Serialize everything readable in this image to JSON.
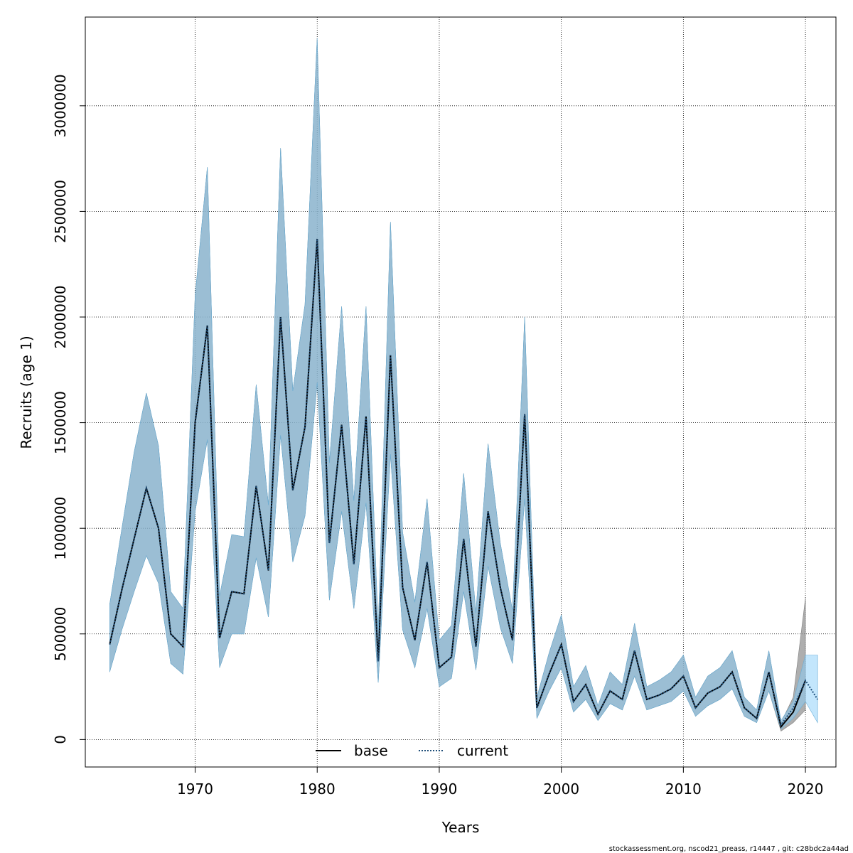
{
  "chart_data": {
    "type": "line",
    "xlabel": "Years",
    "ylabel": "Recruits (age 1)",
    "xlim": [
      1961,
      2022.5
    ],
    "ylim": [
      -130000,
      3420000
    ],
    "x_ticks": [
      1970,
      1980,
      1990,
      2000,
      2010,
      2020
    ],
    "x_tick_labels": [
      "1970",
      "1980",
      "1990",
      "2000",
      "2010",
      "2020"
    ],
    "y_ticks": [
      0,
      500000,
      1000000,
      1500000,
      2000000,
      2500000,
      3000000
    ],
    "y_tick_labels": [
      "0",
      "500000",
      "1000000",
      "1500000",
      "2000000",
      "2500000",
      "3000000"
    ],
    "grid": true,
    "legend_position": "bottom",
    "legend": [
      {
        "label": "base",
        "style": "solid",
        "color": "#000000"
      },
      {
        "label": "current",
        "style": "dotted",
        "color": "#1f4e79"
      }
    ],
    "colors": {
      "base_band": "#8c8c8c",
      "current_band": "#87cefa",
      "overlap_band": "#a6c6d6",
      "base_line": "#000000",
      "current_line": "#1f4e79"
    },
    "x": [
      1963,
      1964,
      1965,
      1966,
      1967,
      1968,
      1969,
      1970,
      1971,
      1972,
      1973,
      1974,
      1975,
      1976,
      1977,
      1978,
      1979,
      1980,
      1981,
      1982,
      1983,
      1984,
      1985,
      1986,
      1987,
      1988,
      1989,
      1990,
      1991,
      1992,
      1993,
      1994,
      1995,
      1996,
      1997,
      1998,
      1999,
      2000,
      2001,
      2002,
      2003,
      2004,
      2005,
      2006,
      2007,
      2008,
      2009,
      2010,
      2011,
      2012,
      2013,
      2014,
      2015,
      2016,
      2017,
      2018,
      2019,
      2020,
      2021
    ],
    "series": [
      {
        "name": "base",
        "x": [
          1963,
          1964,
          1965,
          1966,
          1967,
          1968,
          1969,
          1970,
          1971,
          1972,
          1973,
          1974,
          1975,
          1976,
          1977,
          1978,
          1979,
          1980,
          1981,
          1982,
          1983,
          1984,
          1985,
          1986,
          1987,
          1988,
          1989,
          1990,
          1991,
          1992,
          1993,
          1994,
          1995,
          1996,
          1997,
          1998,
          1999,
          2000,
          2001,
          2002,
          2003,
          2004,
          2005,
          2006,
          2007,
          2008,
          2009,
          2010,
          2011,
          2012,
          2013,
          2014,
          2015,
          2016,
          2017,
          2018,
          2019,
          2020
        ],
        "values": [
          450000,
          710000,
          950000,
          1190000,
          1000000,
          500000,
          440000,
          1500000,
          1960000,
          480000,
          700000,
          690000,
          1200000,
          800000,
          2000000,
          1180000,
          1480000,
          2370000,
          930000,
          1490000,
          830000,
          1530000,
          370000,
          1820000,
          720000,
          470000,
          840000,
          340000,
          390000,
          950000,
          440000,
          1080000,
          720000,
          470000,
          1540000,
          150000,
          310000,
          450000,
          180000,
          260000,
          120000,
          230000,
          190000,
          420000,
          190000,
          210000,
          240000,
          300000,
          150000,
          220000,
          250000,
          320000,
          150000,
          100000,
          320000,
          60000,
          130000,
          280000
        ],
        "lower": [
          320000,
          520000,
          700000,
          870000,
          740000,
          360000,
          310000,
          1080000,
          1420000,
          340000,
          500000,
          500000,
          860000,
          580000,
          1440000,
          840000,
          1060000,
          1690000,
          660000,
          1080000,
          620000,
          1120000,
          270000,
          1350000,
          520000,
          340000,
          620000,
          250000,
          290000,
          700000,
          330000,
          820000,
          530000,
          360000,
          1140000,
          100000,
          230000,
          340000,
          130000,
          190000,
          90000,
          170000,
          140000,
          300000,
          140000,
          160000,
          180000,
          230000,
          110000,
          160000,
          190000,
          240000,
          110000,
          80000,
          230000,
          40000,
          80000,
          140000
        ],
        "upper": [
          640000,
          1000000,
          1360000,
          1640000,
          1390000,
          700000,
          620000,
          2100000,
          2710000,
          680000,
          970000,
          960000,
          1680000,
          1110000,
          2800000,
          1650000,
          2060000,
          3320000,
          1310000,
          2050000,
          1130000,
          2050000,
          520000,
          2450000,
          980000,
          650000,
          1140000,
          470000,
          540000,
          1260000,
          600000,
          1400000,
          930000,
          610000,
          2000000,
          200000,
          410000,
          590000,
          250000,
          350000,
          160000,
          320000,
          260000,
          550000,
          250000,
          280000,
          320000,
          400000,
          200000,
          300000,
          340000,
          420000,
          200000,
          140000,
          420000,
          80000,
          200000,
          670000
        ]
      },
      {
        "name": "current",
        "x": [
          1963,
          1964,
          1965,
          1966,
          1967,
          1968,
          1969,
          1970,
          1971,
          1972,
          1973,
          1974,
          1975,
          1976,
          1977,
          1978,
          1979,
          1980,
          1981,
          1982,
          1983,
          1984,
          1985,
          1986,
          1987,
          1988,
          1989,
          1990,
          1991,
          1992,
          1993,
          1994,
          1995,
          1996,
          1997,
          1998,
          1999,
          2000,
          2001,
          2002,
          2003,
          2004,
          2005,
          2006,
          2007,
          2008,
          2009,
          2010,
          2011,
          2012,
          2013,
          2014,
          2015,
          2016,
          2017,
          2018,
          2019,
          2020,
          2021
        ],
        "values": [
          450000,
          710000,
          950000,
          1190000,
          1000000,
          500000,
          440000,
          1500000,
          1960000,
          480000,
          700000,
          690000,
          1200000,
          800000,
          2000000,
          1180000,
          1480000,
          2370000,
          930000,
          1490000,
          830000,
          1530000,
          370000,
          1820000,
          720000,
          470000,
          840000,
          340000,
          390000,
          950000,
          440000,
          1080000,
          720000,
          470000,
          1540000,
          150000,
          310000,
          450000,
          180000,
          260000,
          120000,
          230000,
          190000,
          420000,
          190000,
          210000,
          240000,
          300000,
          150000,
          220000,
          250000,
          320000,
          150000,
          100000,
          320000,
          70000,
          150000,
          280000,
          190000
        ],
        "lower": [
          320000,
          520000,
          700000,
          870000,
          740000,
          360000,
          310000,
          1080000,
          1420000,
          340000,
          500000,
          500000,
          860000,
          580000,
          1440000,
          840000,
          1060000,
          1690000,
          660000,
          1080000,
          620000,
          1120000,
          270000,
          1350000,
          520000,
          340000,
          620000,
          250000,
          290000,
          700000,
          330000,
          820000,
          530000,
          360000,
          1140000,
          100000,
          230000,
          340000,
          130000,
          190000,
          90000,
          170000,
          140000,
          300000,
          140000,
          160000,
          180000,
          230000,
          110000,
          160000,
          190000,
          240000,
          110000,
          80000,
          230000,
          50000,
          100000,
          180000,
          80000
        ],
        "upper": [
          640000,
          1000000,
          1360000,
          1640000,
          1390000,
          700000,
          620000,
          2100000,
          2710000,
          680000,
          970000,
          960000,
          1680000,
          1110000,
          2800000,
          1650000,
          2060000,
          3320000,
          1310000,
          2050000,
          1130000,
          2050000,
          520000,
          2450000,
          980000,
          650000,
          1140000,
          470000,
          540000,
          1260000,
          600000,
          1400000,
          930000,
          610000,
          2000000,
          200000,
          410000,
          590000,
          250000,
          350000,
          160000,
          320000,
          260000,
          550000,
          250000,
          280000,
          320000,
          400000,
          200000,
          300000,
          340000,
          420000,
          200000,
          140000,
          420000,
          90000,
          180000,
          400000,
          400000
        ]
      }
    ]
  },
  "footer_text": "stockassessment.org, nscod21_preass, r14447 , git: c28bdc2a44ad"
}
